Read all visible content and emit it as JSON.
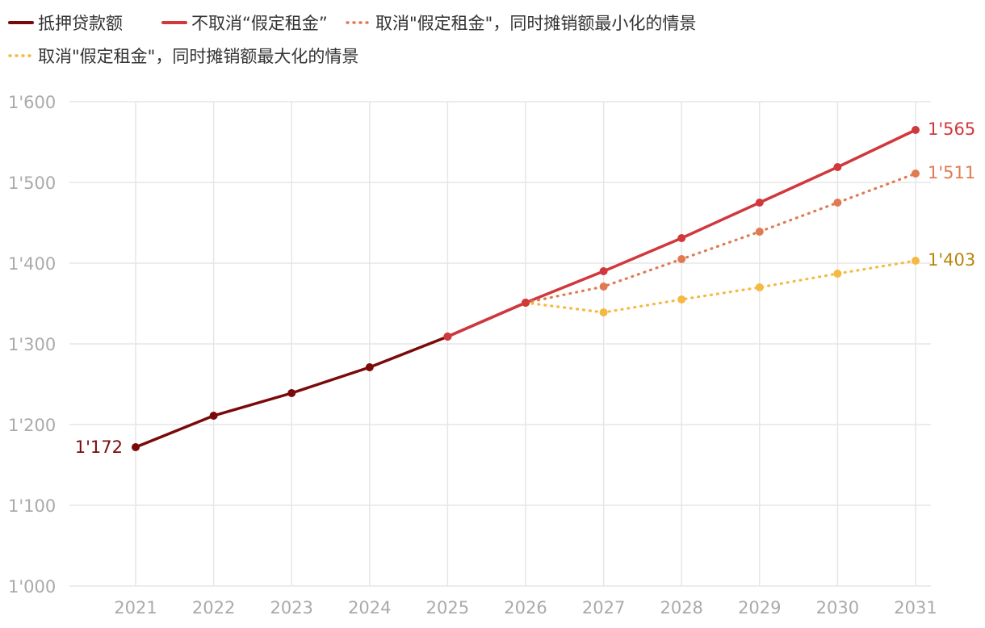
{
  "chart_data": {
    "type": "line",
    "x": [
      "2021",
      "2022",
      "2023",
      "2024",
      "2025",
      "2026",
      "2027",
      "2028",
      "2029",
      "2030",
      "2031"
    ],
    "ylim": [
      1000,
      1600
    ],
    "yticks": [
      1000,
      1100,
      1200,
      1300,
      1400,
      1500,
      1600
    ],
    "ytick_labels": [
      "1'000",
      "1'100",
      "1'200",
      "1'300",
      "1'400",
      "1'500",
      "1'600"
    ],
    "grid": true,
    "legend_position": "top-left",
    "series": [
      {
        "name": "抵押贷款额",
        "color": "#7a0a0a",
        "dash": "solid",
        "x": [
          "2021",
          "2022",
          "2023",
          "2024",
          "2025",
          "2026"
        ],
        "values": [
          1172,
          1211,
          1239,
          1271,
          1309,
          1351
        ],
        "end_label": "1'172"
      },
      {
        "name": "不取消“假定租金”",
        "color": "#d0383c",
        "dash": "solid",
        "x": [
          "2025",
          "2026",
          "2027",
          "2028",
          "2029",
          "2030",
          "2031"
        ],
        "values": [
          1309,
          1351,
          1390,
          1431,
          1475,
          1519,
          1565
        ],
        "end_label": "1'565"
      },
      {
        "name": "取消\"假定租金\"，同时摊销额最小化的情景",
        "color": "#e07a52",
        "dash": "dotted",
        "x": [
          "2026",
          "2027",
          "2028",
          "2029",
          "2030",
          "2031"
        ],
        "values": [
          1351,
          1371,
          1405,
          1439,
          1475,
          1511
        ],
        "end_label": "1'511"
      },
      {
        "name": "取消\"假定租金\"，同时摊销额最大化的情景",
        "color": "#f5b942",
        "dash": "dotted",
        "x": [
          "2026",
          "2027",
          "2028",
          "2029",
          "2030",
          "2031"
        ],
        "values": [
          1351,
          1339,
          1355,
          1370,
          1387,
          1403
        ],
        "end_label": "1'403"
      }
    ]
  },
  "label_colors": {
    "first_point": "#7a0a0a",
    "red": "#d0383c",
    "orange": "#e07a52",
    "yellow": "#b8860b"
  }
}
